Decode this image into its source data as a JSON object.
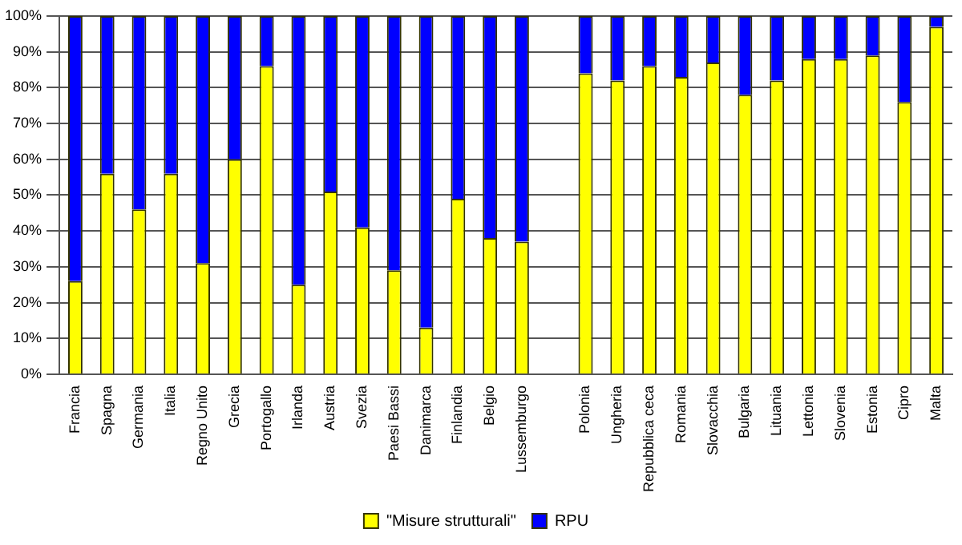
{
  "chart_data": {
    "type": "bar",
    "stacked": true,
    "categories": [
      "Francia",
      "Spagna",
      "Germania",
      "Italia",
      "Regno Unito",
      "Grecia",
      "Portogallo",
      "Irlanda",
      "Austria",
      "Svezia",
      "Paesi Bassi",
      "Danimarca",
      "Finlandia",
      "Belgio",
      "Lussemburgo",
      null,
      "Polonia",
      "Ungheria",
      "Repubblica ceca",
      "Romania",
      "Slovacchia",
      "Bulgaria",
      "Lituania",
      "Lettonia",
      "Slovenia",
      "Estonia",
      "Cipro",
      "Malta"
    ],
    "series": [
      {
        "name": "\"Misure strutturali\"",
        "color": "#ffff00",
        "values": [
          26,
          56,
          46,
          56,
          31,
          60,
          86,
          25,
          51,
          41,
          29,
          13,
          49,
          38,
          37,
          null,
          84,
          82,
          86,
          83,
          87,
          78,
          82,
          88,
          88,
          89,
          76,
          97
        ]
      },
      {
        "name": "RPU",
        "color": "#0000ff",
        "values": [
          74,
          44,
          54,
          44,
          69,
          40,
          14,
          75,
          49,
          59,
          71,
          87,
          51,
          62,
          63,
          null,
          16,
          18,
          14,
          17,
          13,
          22,
          18,
          12,
          12,
          11,
          24,
          3
        ]
      }
    ],
    "ylim": [
      0,
      100
    ],
    "yticks": [
      {
        "value": 0,
        "label": "0%"
      },
      {
        "value": 10,
        "label": "10%"
      },
      {
        "value": 20,
        "label": "20%"
      },
      {
        "value": 30,
        "label": "30%"
      },
      {
        "value": 40,
        "label": "40%"
      },
      {
        "value": 50,
        "label": "50%"
      },
      {
        "value": 60,
        "label": "60%"
      },
      {
        "value": 70,
        "label": "70%"
      },
      {
        "value": 80,
        "label": "80%"
      },
      {
        "value": 90,
        "label": "90%"
      },
      {
        "value": 100,
        "label": "100%"
      }
    ],
    "grid": "y",
    "legend": "bottom"
  }
}
